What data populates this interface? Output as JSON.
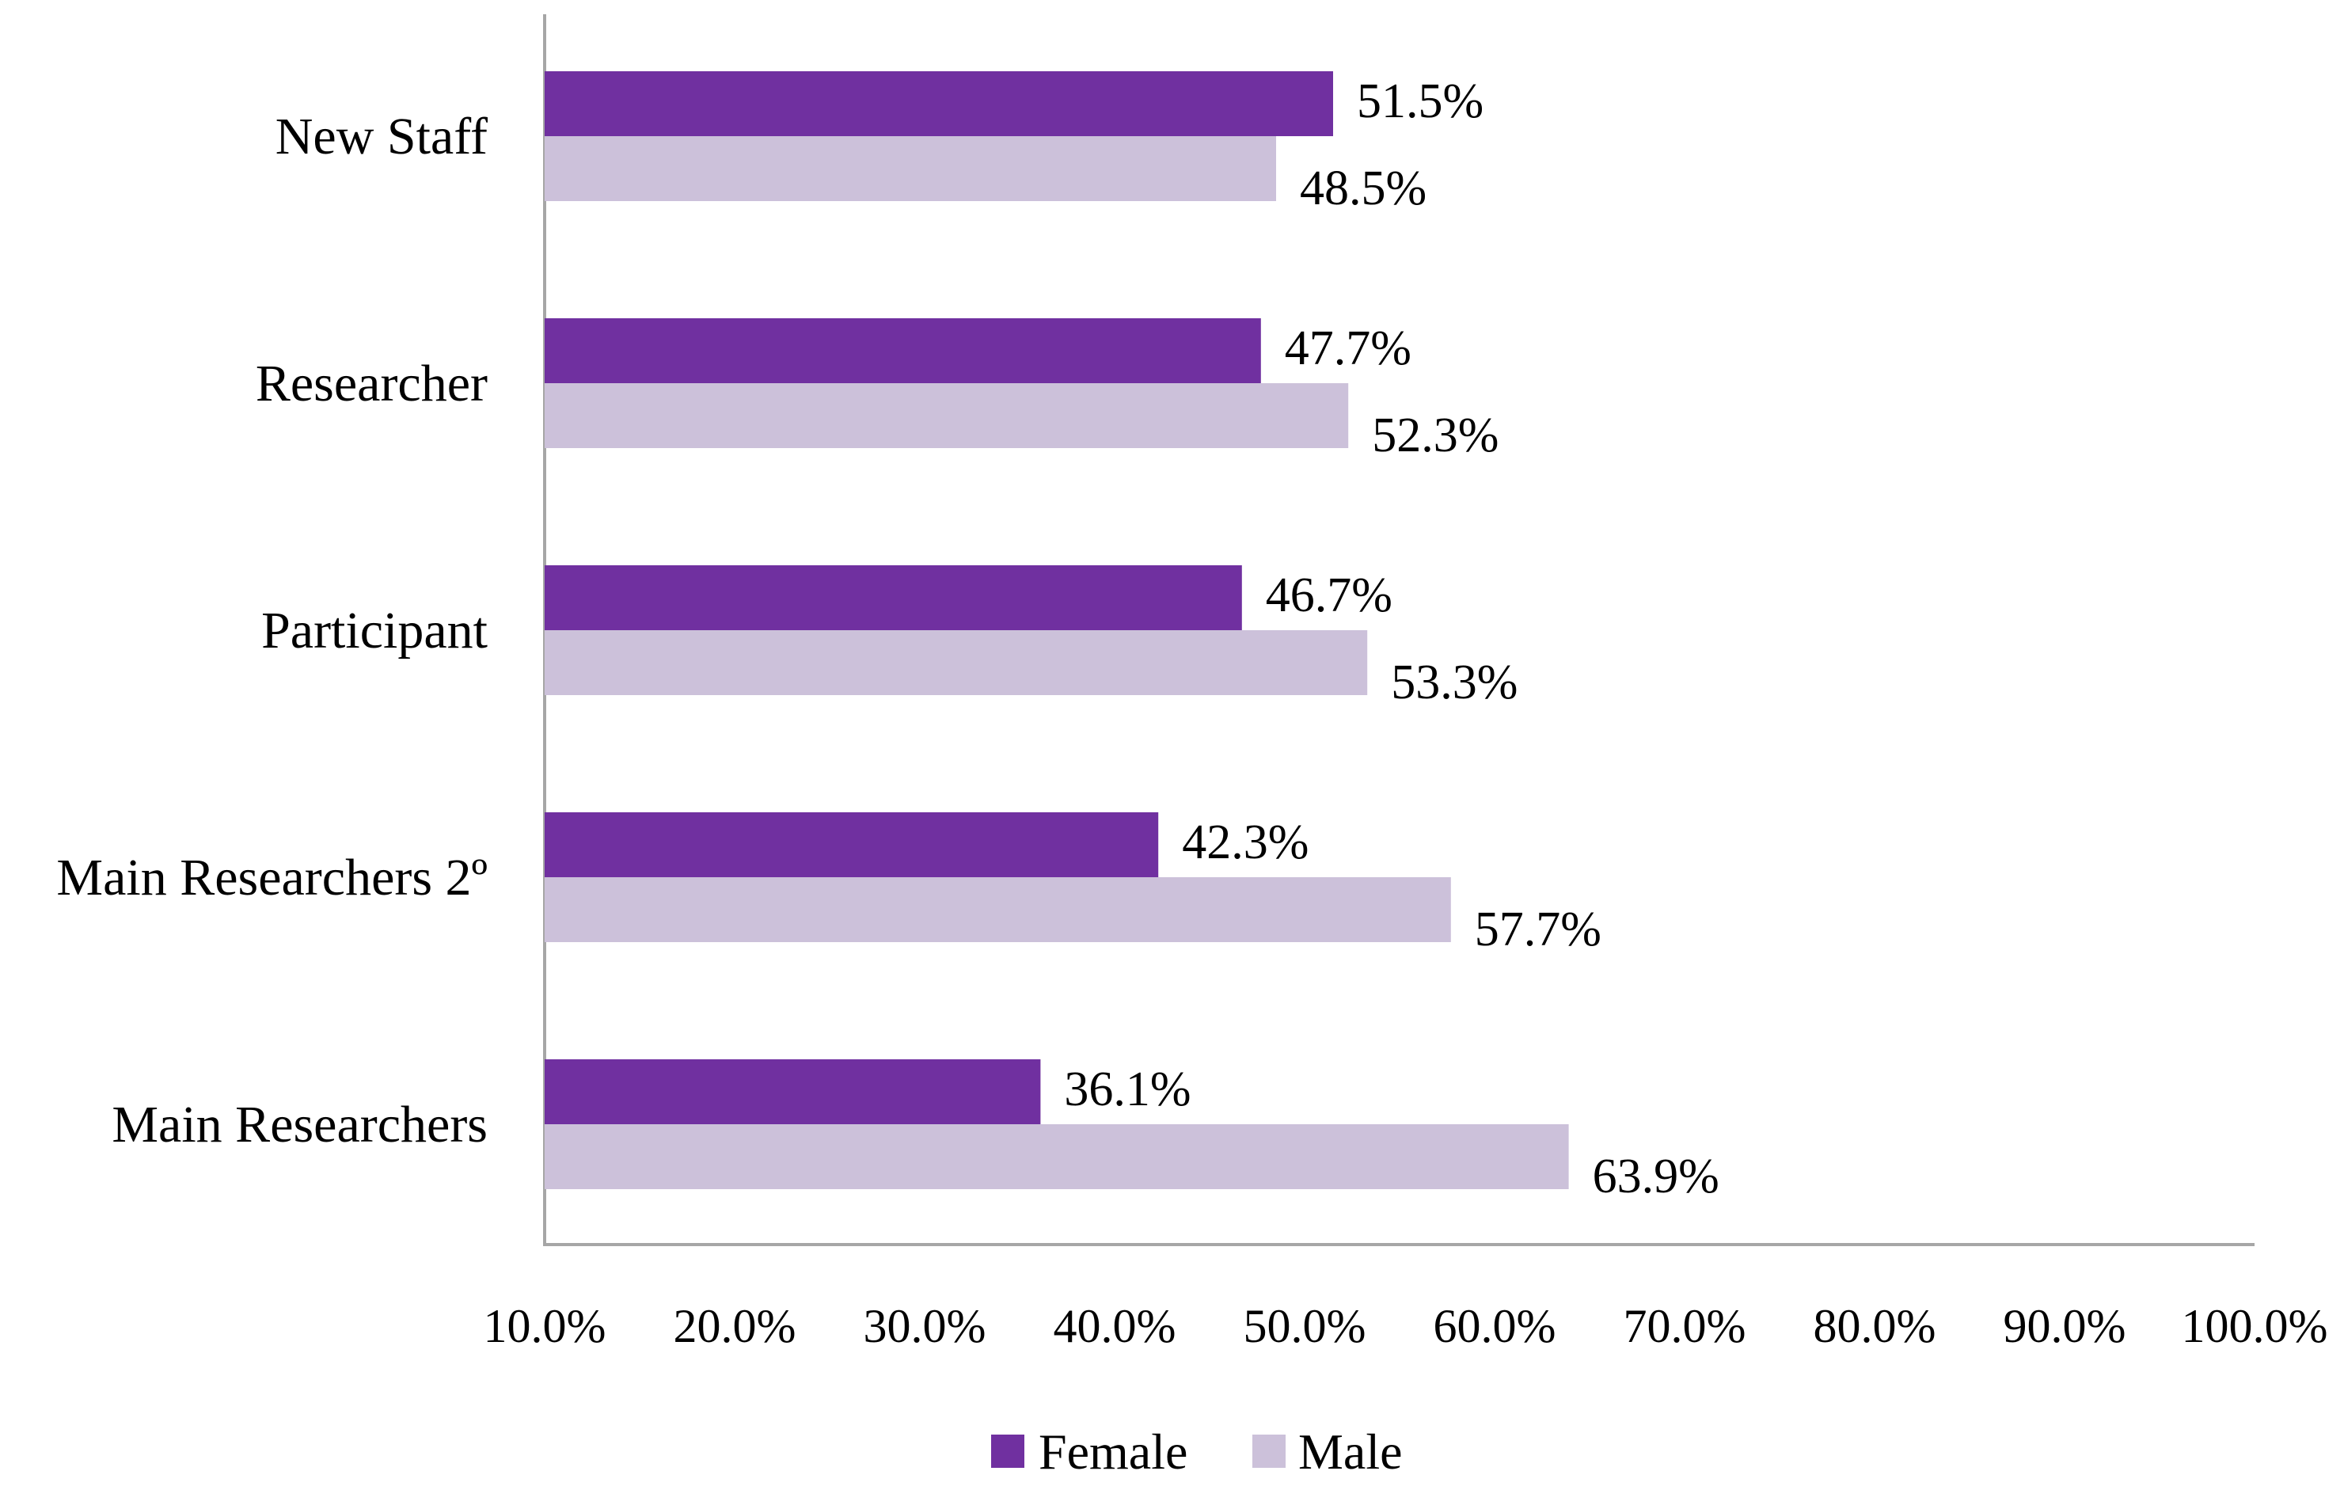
{
  "chart_data": {
    "type": "bar",
    "orientation": "horizontal",
    "title": "",
    "xlabel": "",
    "ylabel": "",
    "categories": [
      "New Staff",
      "Researcher",
      "Participant",
      "Main Researchers 2º",
      "Main Researchers"
    ],
    "series": [
      {
        "name": "Female",
        "color": "#7030A0",
        "values": [
          51.5,
          47.7,
          46.7,
          42.3,
          36.1
        ],
        "labels": [
          "51.5%",
          "47.7%",
          "46.7%",
          "42.3%",
          "36.1%"
        ]
      },
      {
        "name": "Male",
        "color": "#CCC1DA",
        "values": [
          48.5,
          52.3,
          53.3,
          57.7,
          63.9
        ],
        "labels": [
          "48.5%",
          "52.3%",
          "53.3%",
          "57.7%",
          "63.9%"
        ]
      }
    ],
    "xlim": [
      10,
      100
    ],
    "x_ticks": [
      10,
      20,
      30,
      40,
      50,
      60,
      70,
      80,
      90,
      100
    ],
    "x_tick_labels": [
      "10.0%",
      "20.0%",
      "30.0%",
      "40.0%",
      "50.0%",
      "60.0%",
      "70.0%",
      "80.0%",
      "90.0%",
      "100.0%"
    ],
    "grid": false,
    "legend_position": "bottom-center",
    "axis_color": "#A6A6A6"
  }
}
